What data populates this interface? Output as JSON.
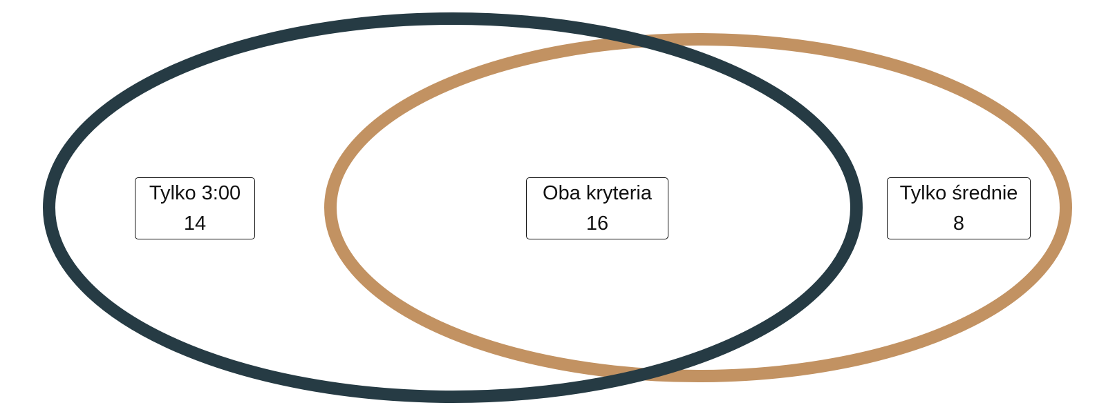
{
  "colors": {
    "set_left": "#263b44",
    "set_right": "#c29262",
    "label_border": "#111111",
    "background": "#ffffff"
  },
  "regions": {
    "left_only": {
      "label": "Tylko 3:00",
      "count": "14"
    },
    "both": {
      "label": "Oba kryteria",
      "count": "16"
    },
    "right_only": {
      "label": "Tylko średnie",
      "count": "8"
    }
  }
}
